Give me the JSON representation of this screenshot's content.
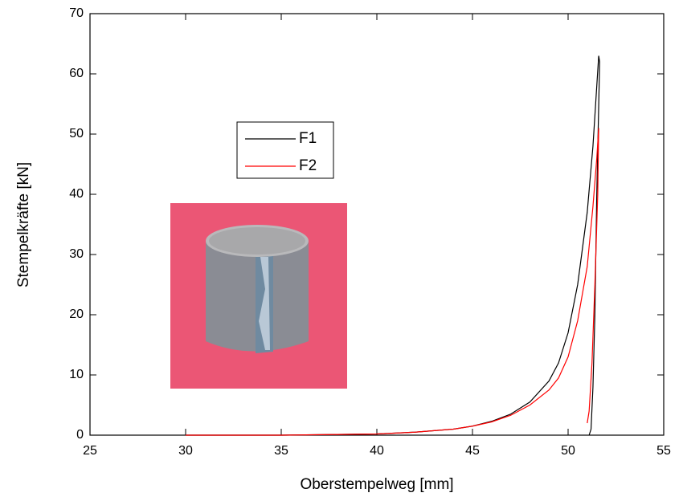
{
  "chart_data": {
    "type": "line",
    "xlabel": "Oberstempelweg [mm]",
    "ylabel": "Stempelkräfte [kN]",
    "xlim": [
      25,
      55
    ],
    "xticks": [
      25,
      30,
      35,
      40,
      45,
      50,
      55
    ],
    "ylim": [
      0,
      70
    ],
    "yticks": [
      0,
      10,
      20,
      30,
      40,
      50,
      60,
      70
    ],
    "series": [
      {
        "name": "F1",
        "color": "#000000",
        "x": [
          30,
          35,
          40,
          42,
          44,
          45,
          46,
          47,
          48,
          49,
          49.5,
          50,
          50.5,
          51,
          51.3,
          51.5,
          51.6,
          51.65,
          51.5,
          51.4,
          51.3,
          51.2,
          51.1
        ],
        "values": [
          0,
          0,
          0.2,
          0.5,
          1,
          1.5,
          2.3,
          3.5,
          5.5,
          9,
          12,
          17,
          25,
          37,
          48,
          58,
          63,
          62,
          40,
          20,
          8,
          1,
          0
        ]
      },
      {
        "name": "F2",
        "color": "#ff0000",
        "x": [
          30,
          35,
          40,
          42,
          44,
          45,
          46,
          47,
          48,
          49,
          49.5,
          50,
          50.5,
          51,
          51.3,
          51.5,
          51.6,
          51.55,
          51.4,
          51.25,
          51.1,
          51.0
        ],
        "values": [
          0,
          0,
          0.2,
          0.5,
          1,
          1.5,
          2.2,
          3.3,
          5,
          7.5,
          9.5,
          13,
          19,
          28,
          38,
          46,
          51,
          40,
          25,
          12,
          4,
          2
        ]
      }
    ]
  }
}
